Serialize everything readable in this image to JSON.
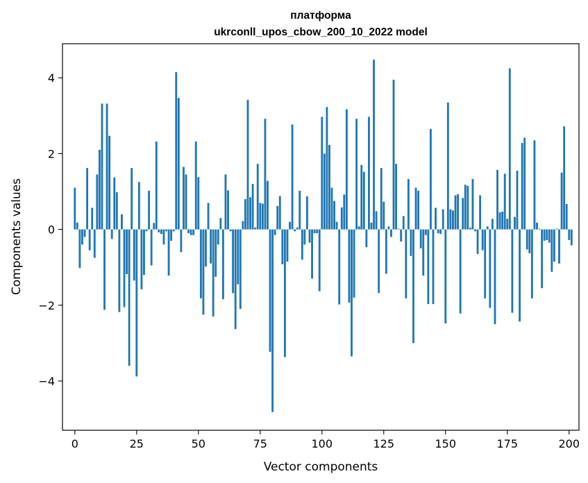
{
  "chart_data": {
    "type": "bar",
    "title": "платформа",
    "subtitle": "ukrconll_upos_cbow_200_10_2022 model",
    "xlabel": "Vector components",
    "ylabel": "Components values",
    "xlim": [
      -5,
      204
    ],
    "ylim": [
      -5.3,
      4.9
    ],
    "xticks": [
      0,
      25,
      50,
      75,
      100,
      125,
      150,
      175,
      200
    ],
    "yticks": [
      -4,
      -2,
      0,
      2,
      4
    ],
    "ytick_labels": [
      "−4",
      "−2",
      "0",
      "2",
      "4"
    ],
    "grid": false,
    "legend": "none",
    "color": "#1f77b4",
    "values": [
      1.1,
      0.18,
      -1.02,
      -0.4,
      -0.2,
      1.62,
      -0.55,
      0.57,
      -0.75,
      1.45,
      2.1,
      3.32,
      -2.12,
      3.32,
      2.47,
      -0.25,
      1.37,
      0.98,
      -2.18,
      0.4,
      -2.05,
      -1.18,
      -3.6,
      1.62,
      -1.35,
      -3.88,
      1.25,
      -1.58,
      -1.2,
      -0.05,
      1.02,
      -0.95,
      0.17,
      2.32,
      -0.08,
      -0.12,
      -0.4,
      -0.05,
      -1.22,
      -0.3,
      -0.05,
      4.15,
      3.47,
      -0.6,
      1.65,
      1.45,
      -0.1,
      -0.15,
      -0.15,
      2.32,
      1.38,
      -1.82,
      -2.25,
      -0.98,
      0.7,
      -0.9,
      -2.3,
      -1.25,
      -0.4,
      0.3,
      -1.84,
      1.45,
      1.03,
      -0.05,
      -1.68,
      -2.63,
      -1.45,
      -2.1,
      0.22,
      0.8,
      3.42,
      0.85,
      1.2,
      0.05,
      1.73,
      0.7,
      0.68,
      2.92,
      1.28,
      -3.23,
      -4.82,
      -0.15,
      0.62,
      0.88,
      -0.92,
      -3.37,
      -0.85,
      0.2,
      2.77,
      -0.05,
      0.05,
      1.02,
      -0.8,
      -0.4,
      0.87,
      -0.35,
      -1.3,
      -0.1,
      -0.1,
      -1.63,
      2.97,
      2.0,
      3.23,
      2.23,
      1.1,
      0.75,
      0.2,
      -1.98,
      0.58,
      0.92,
      3.17,
      -1.93,
      -3.35,
      -1.8,
      2.92,
      0.08,
      1.7,
      1.52,
      -0.47,
      2.97,
      0.18,
      4.48,
      0.48,
      -1.68,
      1.62,
      0.73,
      -1.17,
      0.08,
      -0.2,
      3.95,
      1.73,
      0.02,
      -0.32,
      0.35,
      -1.82,
      1.33,
      -0.7,
      -3.0,
      1.1,
      1.02,
      -0.5,
      -1.22,
      -0.15,
      -1.97,
      2.65,
      -1.97,
      0.57,
      -0.1,
      -0.12,
      0.53,
      -2.48,
      3.35,
      0.53,
      0.5,
      0.9,
      0.93,
      -2.22,
      0.83,
      1.18,
      1.15,
      0.05,
      1.33,
      -0.05,
      -0.65,
      0.9,
      -0.55,
      -1.82,
      0.08,
      -2.07,
      0.28,
      -2.5,
      1.57,
      0.45,
      0.47,
      1.47,
      0.28,
      4.25,
      -2.2,
      0.33,
      1.55,
      -2.43,
      2.28,
      2.42,
      -0.53,
      -0.63,
      -1.82,
      2.35,
      0.18,
      0.02,
      -1.55,
      -0.3,
      -0.28,
      -0.35,
      -1.12,
      -0.85,
      0.02,
      -0.9,
      1.5,
      2.72,
      0.67,
      -0.28,
      -0.42
    ]
  }
}
